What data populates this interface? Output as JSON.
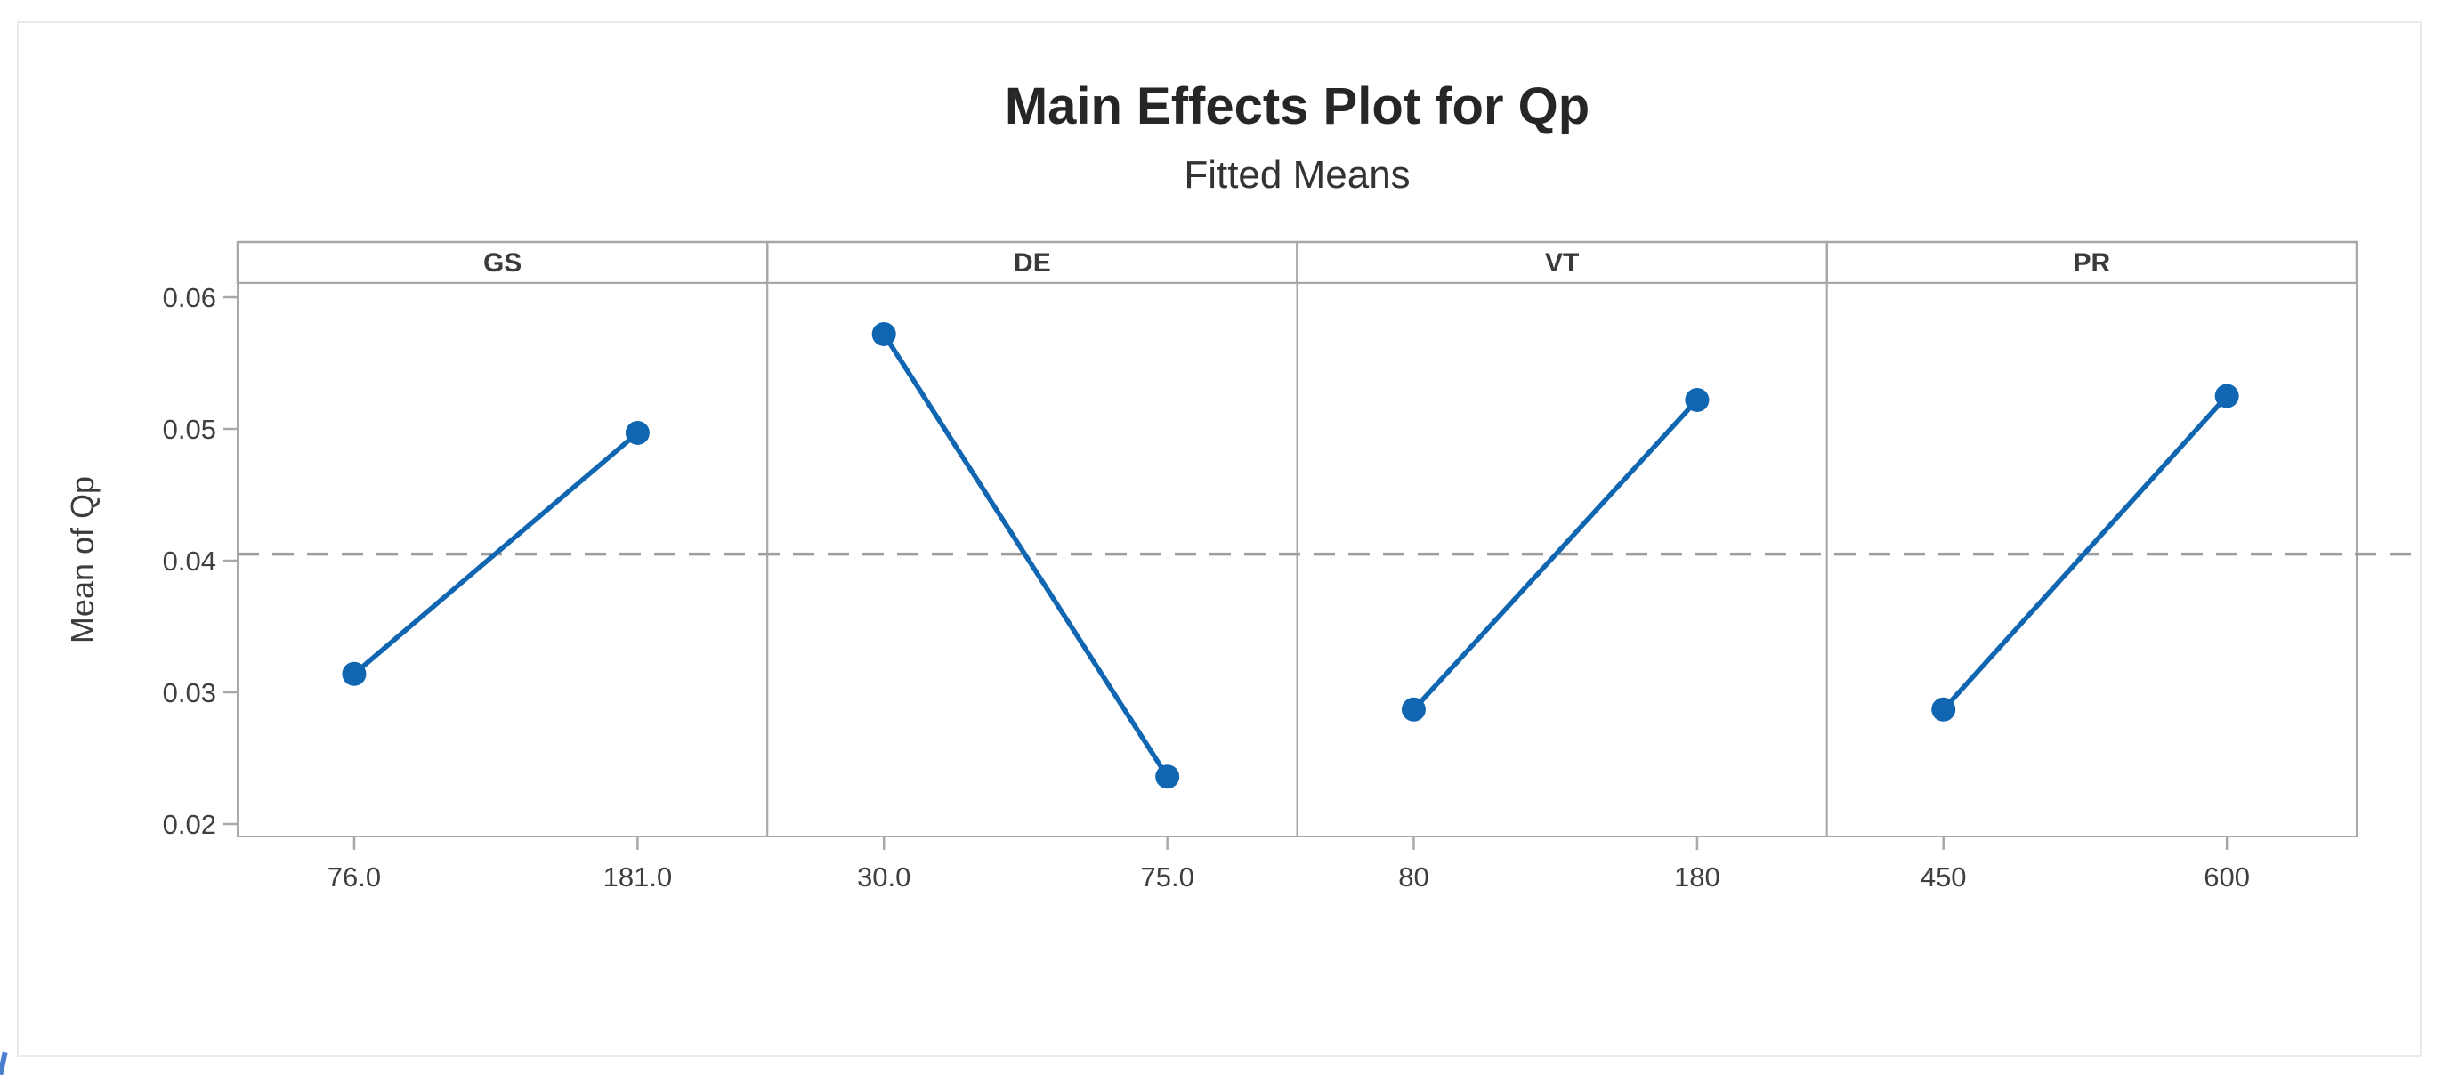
{
  "chart_data": {
    "type": "line",
    "title": "Main Effects Plot for Qp",
    "subtitle": "Fitted Means",
    "ylabel": "Mean of Qp",
    "ylim": [
      0.019,
      0.061
    ],
    "yticks": [
      0.02,
      0.03,
      0.04,
      0.05,
      0.06
    ],
    "reference_line_mean": 0.0405,
    "panels": [
      {
        "factor": "GS",
        "levels": [
          "76.0",
          "181.0"
        ],
        "means": [
          0.0314,
          0.0497
        ]
      },
      {
        "factor": "DE",
        "levels": [
          "30.0",
          "75.0"
        ],
        "means": [
          0.0572,
          0.0236
        ]
      },
      {
        "factor": "VT",
        "levels": [
          "80",
          "180"
        ],
        "means": [
          0.0287,
          0.0522
        ]
      },
      {
        "factor": "PR",
        "levels": [
          "450",
          "600"
        ],
        "means": [
          0.0287,
          0.0525
        ]
      }
    ],
    "legend": false,
    "grid": false
  },
  "colors": {
    "line": "#1166b1",
    "marker": "#1166b1",
    "reference_line": "#9f9f9f",
    "panel_border": "#a8a8a8",
    "tick_text": "#3f3f3f",
    "axis_label_text": "#3c3c3c",
    "panel_label_text": "#3a3a3a",
    "title_text": "#262626",
    "figure_border": "#e9eaec",
    "background": "#ffffff",
    "stray_mark": "#4a7fd0"
  }
}
